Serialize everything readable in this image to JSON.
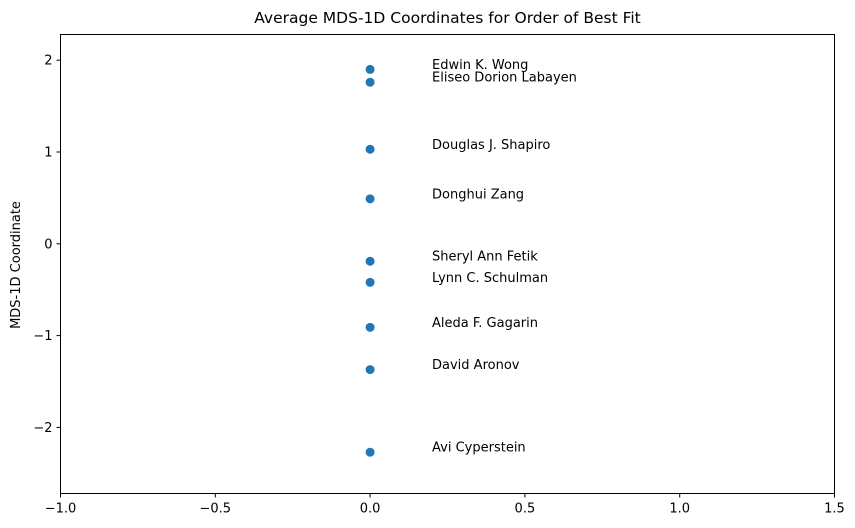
{
  "chart_data": {
    "type": "scatter",
    "title": "Average MDS-1D Coordinates for Order of Best Fit",
    "xlabel": "",
    "ylabel": "MDS-1D Coordinate",
    "xlim": [
      -1.0,
      1.5
    ],
    "ylim": [
      -2.72,
      2.28
    ],
    "xticks": [
      -1.0,
      -0.5,
      0.0,
      0.5,
      1.0,
      1.5
    ],
    "xtick_labels": [
      "−1.0",
      "−0.5",
      "0.0",
      "0.5",
      "1.0",
      "1.5"
    ],
    "yticks": [
      -2,
      -1,
      0,
      1,
      2
    ],
    "ytick_labels": [
      "−2",
      "−1",
      "0",
      "1",
      "2"
    ],
    "grid": false,
    "marker_color": "#1f77b4",
    "points": [
      {
        "label": "Edwin K. Wong",
        "x": 0.0,
        "y": 1.9
      },
      {
        "label": "Eliseo Dorion Labayen",
        "x": 0.0,
        "y": 1.76
      },
      {
        "label": "Douglas J. Shapiro",
        "x": 0.0,
        "y": 1.03
      },
      {
        "label": "Donghui Zang",
        "x": 0.0,
        "y": 0.49
      },
      {
        "label": "Sheryl Ann Fetik",
        "x": 0.0,
        "y": -0.19
      },
      {
        "label": "Lynn C. Schulman",
        "x": 0.0,
        "y": -0.42
      },
      {
        "label": "Aleda F. Gagarin",
        "x": 0.0,
        "y": -0.91
      },
      {
        "label": "David Aronov",
        "x": 0.0,
        "y": -1.37
      },
      {
        "label": "Avi Cyperstein",
        "x": 0.0,
        "y": -2.27
      }
    ]
  }
}
